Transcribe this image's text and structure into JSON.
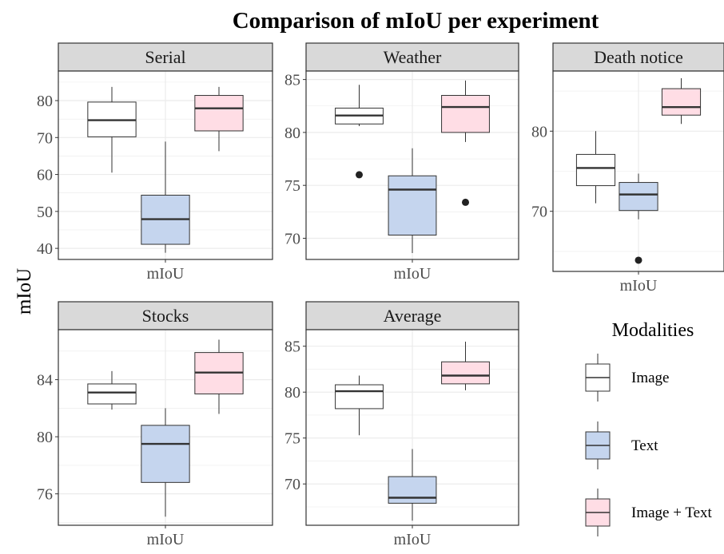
{
  "title": "Comparison of mIoU per experiment",
  "ylabel": "mIoU",
  "legend": {
    "title": "Modalities",
    "placement": "right-bottom",
    "items": [
      {
        "label": "Image",
        "color": "#ffffff"
      },
      {
        "label": "Text",
        "color": "#c5d5ee"
      },
      {
        "label": "Image + Text",
        "color": "#ffdde5"
      }
    ]
  },
  "colors": {
    "Image": "#ffffff",
    "Text": "#c5d5ee",
    "Image + Text": "#ffdde5",
    "strip_fill": "#d9d9d9",
    "grid": "#ebebeb",
    "border": "#333333",
    "box_stroke": "#333333"
  },
  "chart_data": [
    {
      "type": "box",
      "panel": "Serial",
      "xlabel": "mIoU",
      "ylim": [
        37,
        88
      ],
      "yticks": [
        40,
        50,
        60,
        70,
        80
      ],
      "series": [
        {
          "name": "Image",
          "whisker_low": 60.5,
          "q1": 70.2,
          "median": 74.7,
          "q3": 79.6,
          "whisker_high": 83.7,
          "outliers": []
        },
        {
          "name": "Text",
          "whisker_low": 38.8,
          "q1": 41.1,
          "median": 47.9,
          "q3": 54.4,
          "whisker_high": 68.9,
          "outliers": []
        },
        {
          "name": "Image + Text",
          "whisker_low": 66.3,
          "q1": 71.8,
          "median": 77.9,
          "q3": 81.4,
          "whisker_high": 83.7,
          "outliers": []
        }
      ]
    },
    {
      "type": "box",
      "panel": "Weather",
      "xlabel": "mIoU",
      "ylim": [
        68,
        85.8
      ],
      "yticks": [
        70,
        75,
        80,
        85
      ],
      "series": [
        {
          "name": "Image",
          "whisker_low": 80.6,
          "q1": 80.8,
          "median": 81.6,
          "q3": 82.3,
          "whisker_high": 84.5,
          "outliers": [
            76.0
          ]
        },
        {
          "name": "Text",
          "whisker_low": 68.6,
          "q1": 70.3,
          "median": 74.6,
          "q3": 75.9,
          "whisker_high": 78.5,
          "outliers": []
        },
        {
          "name": "Image + Text",
          "whisker_low": 79.1,
          "q1": 80.0,
          "median": 82.4,
          "q3": 83.5,
          "whisker_high": 84.9,
          "outliers": [
            73.4
          ]
        }
      ]
    },
    {
      "type": "box",
      "panel": "Death notice",
      "xlabel": "mIoU",
      "ylim": [
        62.5,
        87.5
      ],
      "yticks": [
        70,
        80
      ],
      "series": [
        {
          "name": "Image",
          "whisker_low": 71.0,
          "q1": 73.2,
          "median": 75.4,
          "q3": 77.1,
          "whisker_high": 80.0,
          "outliers": []
        },
        {
          "name": "Text",
          "whisker_low": 69.0,
          "q1": 70.1,
          "median": 72.1,
          "q3": 73.6,
          "whisker_high": 74.7,
          "outliers": [
            63.9
          ]
        },
        {
          "name": "Image + Text",
          "whisker_low": 80.9,
          "q1": 82.0,
          "median": 83.0,
          "q3": 85.3,
          "whisker_high": 86.6,
          "outliers": []
        }
      ]
    },
    {
      "type": "box",
      "panel": "Stocks",
      "xlabel": "mIoU",
      "ylim": [
        73.8,
        87.5
      ],
      "yticks": [
        76,
        80,
        84
      ],
      "series": [
        {
          "name": "Image",
          "whisker_low": 81.9,
          "q1": 82.3,
          "median": 83.1,
          "q3": 83.7,
          "whisker_high": 84.6,
          "outliers": []
        },
        {
          "name": "Text",
          "whisker_low": 74.4,
          "q1": 76.8,
          "median": 79.5,
          "q3": 80.8,
          "whisker_high": 82.0,
          "outliers": []
        },
        {
          "name": "Image + Text",
          "whisker_low": 81.6,
          "q1": 83.0,
          "median": 84.5,
          "q3": 85.9,
          "whisker_high": 86.8,
          "outliers": []
        }
      ]
    },
    {
      "type": "box",
      "panel": "Average",
      "xlabel": "mIoU",
      "ylim": [
        65.5,
        86.8
      ],
      "yticks": [
        70,
        75,
        80,
        85
      ],
      "series": [
        {
          "name": "Image",
          "whisker_low": 75.3,
          "q1": 78.2,
          "median": 80.1,
          "q3": 80.8,
          "whisker_high": 81.8,
          "outliers": []
        },
        {
          "name": "Text",
          "whisker_low": 66.0,
          "q1": 67.9,
          "median": 68.5,
          "q3": 70.8,
          "whisker_high": 73.8,
          "outliers": []
        },
        {
          "name": "Image + Text",
          "whisker_low": 80.2,
          "q1": 80.9,
          "median": 81.8,
          "q3": 83.3,
          "whisker_high": 85.5,
          "outliers": []
        }
      ]
    }
  ]
}
